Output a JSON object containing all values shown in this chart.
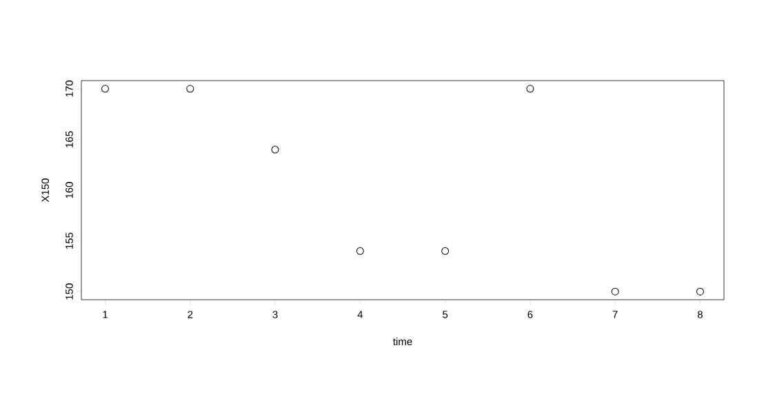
{
  "chart_data": {
    "type": "scatter",
    "xlabel": "time",
    "ylabel": "X150",
    "x": [
      1,
      2,
      3,
      4,
      5,
      6,
      7,
      8
    ],
    "values": [
      170,
      170,
      164,
      154,
      154,
      170,
      150,
      150
    ],
    "color": "#000000",
    "marker": "circle",
    "xlim": [
      0.72,
      8.28
    ],
    "ylim": [
      149.2,
      170.8
    ],
    "xticks": [
      1,
      2,
      3,
      4,
      5,
      6,
      7,
      8
    ],
    "yticks": [
      150,
      155,
      160,
      165,
      170
    ]
  }
}
